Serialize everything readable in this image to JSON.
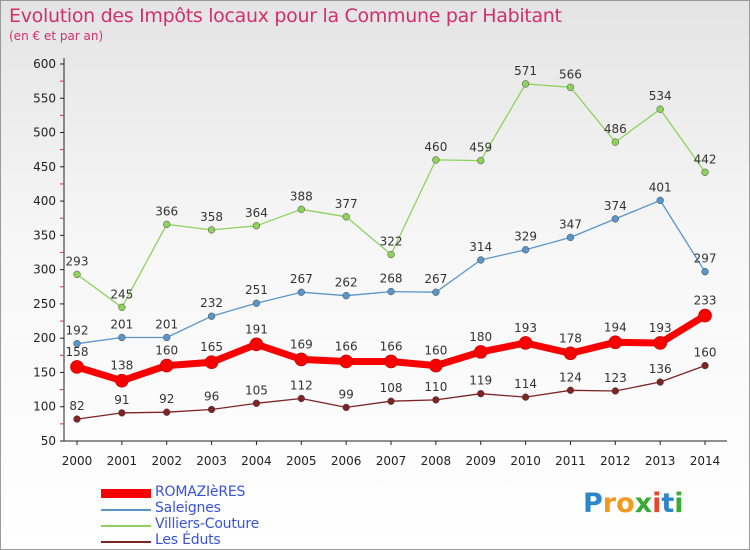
{
  "title": "Evolution des Impôts locaux pour la Commune par Habitant",
  "subtitle": "(en € et par an)",
  "logo": {
    "letters": [
      "P",
      "r",
      "o",
      "x",
      "i",
      "t",
      "i"
    ],
    "colors": [
      "#2c86c8",
      "#f39a1e",
      "#f39a1e",
      "#3aaa35",
      "#e8452c",
      "#2c86c8",
      "#3aaa35"
    ]
  },
  "chart_data": {
    "type": "line",
    "x": [
      "2000",
      "2001",
      "2002",
      "2003",
      "2004",
      "2005",
      "2006",
      "2007",
      "2008",
      "2009",
      "2010",
      "2011",
      "2012",
      "2013",
      "2014"
    ],
    "yticks": [
      50,
      100,
      150,
      200,
      250,
      300,
      350,
      400,
      450,
      500,
      550,
      600
    ],
    "ylim": [
      50,
      600
    ],
    "grid": false,
    "series": [
      {
        "name": "ROMAZIèRES",
        "color": "#f80000",
        "thick": true,
        "values": [
          158,
          138,
          160,
          165,
          191,
          169,
          166,
          166,
          160,
          180,
          193,
          178,
          194,
          193,
          233
        ]
      },
      {
        "name": "Saleignes",
        "color": "#5b96c8",
        "thick": false,
        "values": [
          192,
          201,
          201,
          232,
          251,
          267,
          262,
          268,
          267,
          314,
          329,
          347,
          374,
          401,
          297
        ]
      },
      {
        "name": "Villiers-Couture",
        "color": "#8fd15d",
        "thick": false,
        "values": [
          293,
          245,
          366,
          358,
          364,
          388,
          377,
          322,
          460,
          459,
          571,
          566,
          486,
          534,
          442
        ]
      },
      {
        "name": "Les Éduts",
        "color": "#7d2424",
        "thick": false,
        "values": [
          82,
          91,
          92,
          96,
          105,
          112,
          99,
          108,
          110,
          119,
          114,
          124,
          123,
          136,
          160
        ]
      }
    ]
  }
}
